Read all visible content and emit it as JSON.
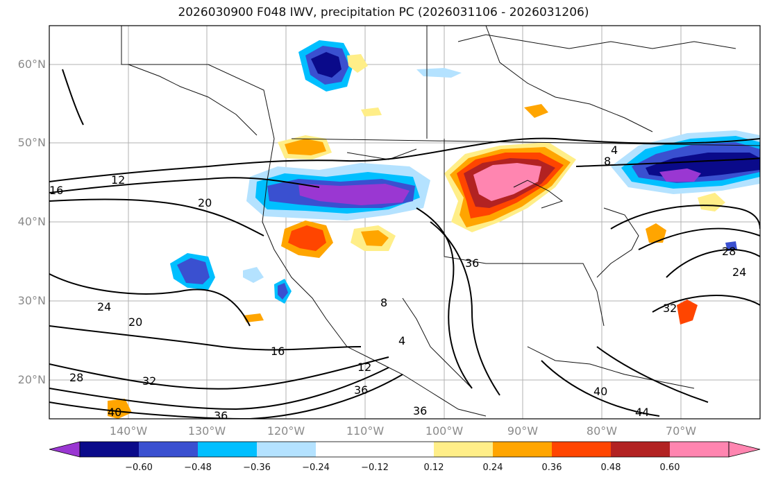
{
  "title": "2026030900 F048 IWV, precipitation PC (2026031106 - 2026031206)",
  "lat_labels": [
    "60°N",
    "50°N",
    "40°N",
    "30°N",
    "20°N"
  ],
  "lon_labels": [
    "140°W",
    "130°W",
    "120°W",
    "110°W",
    "100°W",
    "90°W",
    "80°W",
    "70°W"
  ],
  "contour_labels": [
    "4",
    "8",
    "12",
    "16",
    "20",
    "24",
    "28",
    "32",
    "36",
    "40",
    "44",
    "12",
    "16",
    "20",
    "24",
    "28",
    "32",
    "36",
    "40",
    "4",
    "8",
    "36",
    "36"
  ],
  "colorbar": {
    "colors": [
      "#9a37d2",
      "#0a0a8a",
      "#3a50d0",
      "#00bfff",
      "#b4e2ff",
      "#ffffff",
      "#ffee88",
      "#ffa500",
      "#ff4500",
      "#b22222",
      "#ff85b0"
    ],
    "tick_labels": [
      "−0.60",
      "−0.48",
      "−0.36",
      "−0.24",
      "−0.12",
      "0.12",
      "0.24",
      "0.36",
      "0.48",
      "0.60"
    ]
  }
}
